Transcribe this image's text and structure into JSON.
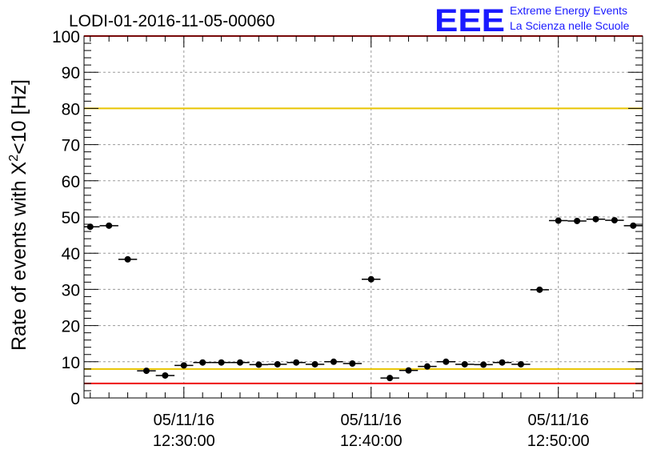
{
  "chart_data": {
    "type": "scatter",
    "title": "LODI-01-2016-11-05-00060",
    "ylabel": "Rate of events with X",
    "ylabel_sup": "2",
    "ylabel_tail": "<10 [Hz]",
    "ylim": [
      0,
      100
    ],
    "y_ticks": [
      "0",
      "10",
      "20",
      "30",
      "40",
      "50",
      "60",
      "70",
      "80",
      "90",
      "100"
    ],
    "x_range_minutes": [
      -5.3333,
      24.5
    ],
    "x_ticks": [
      {
        "pos": 0,
        "date": "05/11/16",
        "time": "12:30:00"
      },
      {
        "pos": 10,
        "date": "05/11/16",
        "time": "12:40:00"
      },
      {
        "pos": 20,
        "date": "05/11/16",
        "time": "12:50:00"
      }
    ],
    "grid": true,
    "points": [
      {
        "x": -5.0,
        "y": 47.3
      },
      {
        "x": -4.0,
        "y": 47.6
      },
      {
        "x": -3.0,
        "y": 38.3
      },
      {
        "x": -2.0,
        "y": 7.5
      },
      {
        "x": -1.0,
        "y": 6.2
      },
      {
        "x": 0.0,
        "y": 9.0
      },
      {
        "x": 1.0,
        "y": 9.8
      },
      {
        "x": 2.0,
        "y": 9.8
      },
      {
        "x": 3.0,
        "y": 9.8
      },
      {
        "x": 4.0,
        "y": 9.2
      },
      {
        "x": 5.0,
        "y": 9.3
      },
      {
        "x": 6.0,
        "y": 9.8
      },
      {
        "x": 7.0,
        "y": 9.3
      },
      {
        "x": 8.0,
        "y": 10.0
      },
      {
        "x": 9.0,
        "y": 9.5
      },
      {
        "x": 10.0,
        "y": 32.8
      },
      {
        "x": 11.0,
        "y": 5.5
      },
      {
        "x": 12.0,
        "y": 7.6
      },
      {
        "x": 13.0,
        "y": 8.7
      },
      {
        "x": 14.0,
        "y": 10.0
      },
      {
        "x": 15.0,
        "y": 9.3
      },
      {
        "x": 16.0,
        "y": 9.2
      },
      {
        "x": 17.0,
        "y": 9.8
      },
      {
        "x": 18.0,
        "y": 9.3
      },
      {
        "x": 19.0,
        "y": 29.9
      },
      {
        "x": 20.0,
        "y": 49.0
      },
      {
        "x": 21.0,
        "y": 48.9
      },
      {
        "x": 22.0,
        "y": 49.4
      },
      {
        "x": 23.0,
        "y": 49.1
      },
      {
        "x": 24.0,
        "y": 47.6
      }
    ],
    "reference_lines": [
      {
        "y": 100,
        "color": "#ee1111"
      },
      {
        "y": 80,
        "color": "#e8c400"
      },
      {
        "y": 8,
        "color": "#e8c400"
      },
      {
        "y": 4,
        "color": "#ee1111"
      }
    ]
  },
  "logo": {
    "mark": "EEE",
    "line1": "Extreme Energy Events",
    "line2": "La Scienza nelle Scuole",
    "color": "#1a1aff"
  }
}
